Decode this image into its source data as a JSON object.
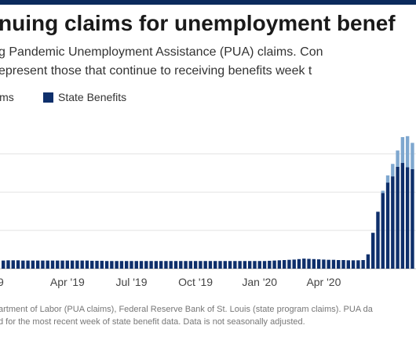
{
  "header": {
    "title": "nuing claims for unemployment benef",
    "subtitle_line1": "g Pandemic Unemployment Assistance (PUA) claims. Con",
    "subtitle_line2": "epresent those that continue to receiving benefits week t"
  },
  "legend": {
    "items": [
      {
        "label": "ims",
        "color": "#7ea7cf"
      },
      {
        "label": "State Benefits",
        "color": "#0e2f6b"
      }
    ]
  },
  "colors": {
    "accent_bar": "#0b2a5c",
    "state": "#0e2f6b",
    "pua": "#7ea7cf",
    "grid": "#e3e3e3"
  },
  "footer": {
    "source_line1": "artment of Labor (PUA claims), Federal Reserve Bank of St. Louis (state program claims). PUA da",
    "source_line2": "d for the most recent week of state benefit data. Data is not seasonally adjusted."
  },
  "chart_data": {
    "type": "bar",
    "stacked": true,
    "ylim": [
      0,
      28
    ],
    "grid": true,
    "x_tick_labels": [
      "9",
      "Apr '19",
      "Jul '19",
      "Oct '19",
      "Jan '20",
      "Apr '20"
    ],
    "series": [
      {
        "name": "State Benefits",
        "values": [
          1.7,
          1.75,
          1.75,
          1.75,
          1.7,
          1.7,
          1.7,
          1.7,
          1.7,
          1.7,
          1.7,
          1.7,
          1.7,
          1.7,
          1.7,
          1.7,
          1.7,
          1.7,
          1.65,
          1.65,
          1.65,
          1.6,
          1.6,
          1.6,
          1.6,
          1.6,
          1.6,
          1.6,
          1.6,
          1.6,
          1.6,
          1.6,
          1.6,
          1.6,
          1.6,
          1.6,
          1.6,
          1.6,
          1.6,
          1.6,
          1.6,
          1.6,
          1.6,
          1.6,
          1.6,
          1.6,
          1.6,
          1.6,
          1.6,
          1.6,
          1.6,
          1.6,
          1.6,
          1.6,
          1.65,
          1.7,
          1.75,
          1.8,
          1.85,
          1.9,
          2.0,
          2.1,
          2.05,
          2.0,
          1.95,
          1.9,
          1.85,
          1.85,
          1.8,
          1.8,
          1.75,
          1.75,
          1.75,
          1.8,
          3.0,
          7.5,
          11.9,
          15.8,
          18.0,
          19.3,
          21.3,
          22.1,
          21.2,
          20.8
        ]
      },
      {
        "name": "PUA",
        "values": [
          0,
          0,
          0,
          0,
          0,
          0,
          0,
          0,
          0,
          0,
          0,
          0,
          0,
          0,
          0,
          0,
          0,
          0,
          0,
          0,
          0,
          0,
          0,
          0,
          0,
          0,
          0,
          0,
          0,
          0,
          0,
          0,
          0,
          0,
          0,
          0,
          0,
          0,
          0,
          0,
          0,
          0,
          0,
          0,
          0,
          0,
          0,
          0,
          0,
          0,
          0,
          0,
          0,
          0,
          0,
          0,
          0,
          0,
          0,
          0,
          0,
          0,
          0,
          0,
          0,
          0,
          0,
          0,
          0,
          0,
          0,
          0,
          0,
          0,
          0,
          0,
          0,
          0.5,
          1.5,
          2.6,
          3.4,
          5.4,
          6.5,
          5.5
        ]
      }
    ]
  }
}
